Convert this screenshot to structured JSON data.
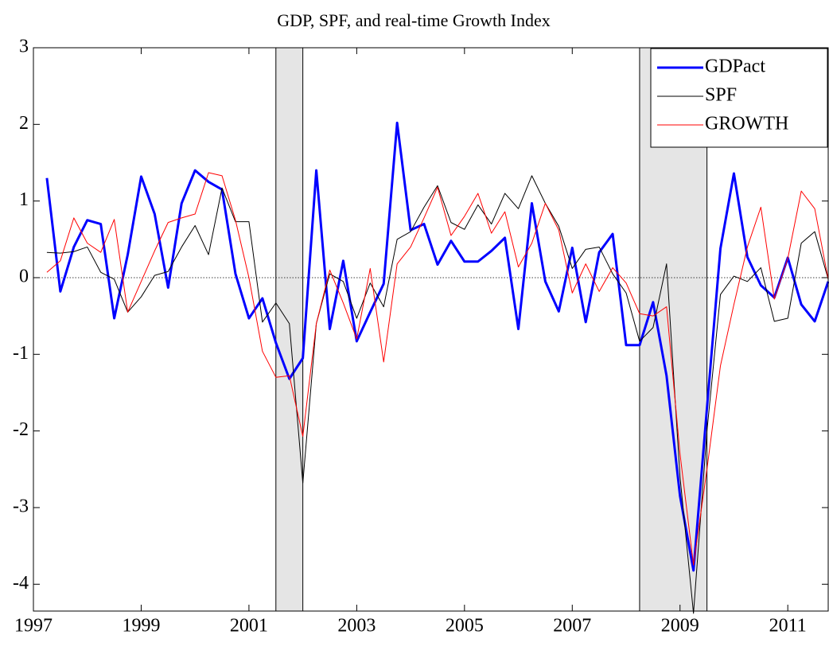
{
  "chart_data": {
    "type": "line",
    "title": "GDP, SPF, and real-time Growth Index",
    "x": [
      1997.25,
      1997.5,
      1997.75,
      1998,
      1998.25,
      1998.5,
      1998.75,
      1999,
      1999.25,
      1999.5,
      1999.75,
      2000,
      2000.25,
      2000.5,
      2000.75,
      2001,
      2001.25,
      2001.5,
      2001.75,
      2002,
      2002.25,
      2002.5,
      2002.75,
      2003,
      2003.25,
      2003.5,
      2003.75,
      2004,
      2004.25,
      2004.5,
      2004.75,
      2005,
      2005.25,
      2005.5,
      2005.75,
      2006,
      2006.25,
      2006.5,
      2006.75,
      2007,
      2007.25,
      2007.5,
      2007.75,
      2008,
      2008.25,
      2008.5,
      2008.75,
      2009,
      2009.25,
      2009.5,
      2009.75,
      2010,
      2010.25,
      2010.5,
      2010.75,
      2011,
      2011.25,
      2011.5,
      2011.75
    ],
    "series": [
      {
        "name": "GDPact",
        "color": "#0000ff",
        "width": 3,
        "values": [
          1.3,
          -0.18,
          0.4,
          0.75,
          0.7,
          -0.53,
          0.3,
          1.32,
          0.83,
          -0.13,
          0.97,
          1.4,
          1.25,
          1.15,
          0.05,
          -0.53,
          -0.27,
          -0.85,
          -1.32,
          -1.05,
          1.4,
          -0.67,
          0.22,
          -0.83,
          -0.45,
          -0.08,
          2.02,
          0.62,
          0.7,
          0.17,
          0.48,
          0.21,
          0.21,
          0.35,
          0.52,
          -0.67,
          0.97,
          -0.05,
          -0.44,
          0.39,
          -0.58,
          0.33,
          0.57,
          -0.88,
          -0.88,
          -0.32,
          -1.28,
          -2.85,
          -3.82,
          -1.7,
          0.38,
          1.36,
          0.27,
          -0.1,
          -0.26,
          0.26,
          -0.35,
          -0.57,
          -0.05
        ]
      },
      {
        "name": "SPF",
        "color": "#000000",
        "width": 1,
        "values": [
          0.33,
          0.32,
          0.34,
          0.4,
          0.07,
          -0.02,
          -0.45,
          -0.25,
          0.03,
          0.08,
          0.4,
          0.68,
          0.3,
          1.17,
          0.73,
          0.73,
          -0.58,
          -0.33,
          -0.6,
          -2.68,
          -0.6,
          0.05,
          -0.05,
          -0.53,
          -0.07,
          -0.38,
          0.5,
          0.6,
          0.92,
          1.2,
          0.72,
          0.63,
          0.95,
          0.7,
          1.1,
          0.9,
          1.33,
          0.97,
          0.67,
          0.12,
          0.37,
          0.4,
          0.05,
          -0.2,
          -0.83,
          -0.65,
          0.18,
          -2.6,
          -4.38,
          -2.0,
          -0.22,
          0.02,
          -0.05,
          0.13,
          -0.57,
          -0.53,
          0.45,
          0.6,
          -0.02
        ]
      },
      {
        "name": "GROWTH",
        "color": "#ff0000",
        "width": 1,
        "values": [
          0.07,
          0.22,
          0.78,
          0.45,
          0.33,
          0.76,
          -0.45,
          -0.05,
          0.35,
          0.72,
          0.78,
          0.83,
          1.37,
          1.33,
          0.75,
          0.0,
          -0.96,
          -1.3,
          -1.28,
          -2.07,
          -0.6,
          0.1,
          -0.33,
          -0.8,
          0.12,
          -1.1,
          0.18,
          0.4,
          0.78,
          1.18,
          0.55,
          0.8,
          1.1,
          0.58,
          0.86,
          0.14,
          0.45,
          0.97,
          0.62,
          -0.2,
          0.18,
          -0.18,
          0.13,
          -0.07,
          -0.47,
          -0.5,
          -0.38,
          -2.3,
          -3.75,
          -2.5,
          -1.15,
          -0.35,
          0.4,
          0.92,
          -0.28,
          0.25,
          1.13,
          0.9,
          -0.02
        ]
      }
    ],
    "shaded_periods": [
      [
        2001.5,
        2002
      ],
      [
        2008.25,
        2009.5
      ]
    ],
    "reference_line": 0,
    "xlim": [
      1997,
      2011.75
    ],
    "ylim": [
      -4.35,
      3
    ],
    "xticks": [
      1997,
      1999,
      2001,
      2003,
      2005,
      2007,
      2009,
      2011
    ],
    "yticks": [
      -4,
      -3,
      -2,
      -1,
      0,
      1,
      2,
      3
    ],
    "grid": false,
    "legend": "upper right"
  }
}
